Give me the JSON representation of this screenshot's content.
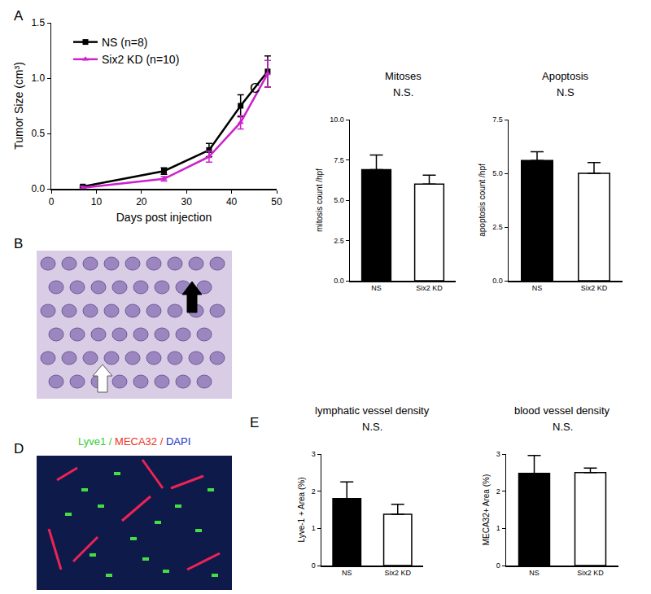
{
  "chart_data": [
    {
      "panel": "A",
      "type": "line",
      "x_label": "Days post injection",
      "y_label": "Tumor Size (cm³)",
      "xlim": [
        0,
        50
      ],
      "xticks": [
        0,
        10,
        20,
        30,
        40,
        50
      ],
      "ylim": [
        0,
        1.5
      ],
      "yticks": [
        {
          "value": 0,
          "label": "0.0"
        },
        {
          "value": 0.5,
          "label": "0.5"
        },
        {
          "value": 1,
          "label": "1.0"
        },
        {
          "value": 1.5,
          "label": "1.5"
        }
      ],
      "legend": "upper left",
      "x": [
        7,
        25,
        35,
        42,
        48
      ],
      "series": [
        {
          "name": "NS (n=8)",
          "color": "#000000",
          "marker": "square",
          "values": [
            0.02,
            0.16,
            0.35,
            0.75,
            1.06
          ],
          "errors": [
            0.01,
            0.03,
            0.06,
            0.1,
            0.14
          ]
        },
        {
          "name": "Six2 KD (n=10)",
          "color": "#cc22cc",
          "marker": "triangle-up",
          "values": [
            0.01,
            0.09,
            0.29,
            0.6,
            1.04
          ],
          "errors": [
            0.01,
            0.02,
            0.05,
            0.06,
            0.12
          ]
        }
      ]
    },
    {
      "panel": "B",
      "type": "image"
    },
    {
      "panel": "C",
      "type": "bar",
      "title": "Mitoses",
      "subtitle": "N.S.",
      "y_label": "mitosis count /hpf",
      "categories": [
        "NS",
        "Six2 KD"
      ],
      "values": [
        6.9,
        6.0
      ],
      "errors": [
        0.9,
        0.55
      ],
      "colors": [
        "#000000",
        "#ffffff"
      ],
      "ylim": [
        0,
        10
      ],
      "yticks": [
        {
          "value": 0,
          "label": "0.0"
        },
        2.5,
        {
          "value": 5,
          "label": "5.0"
        },
        7.5,
        {
          "value": 10,
          "label": "10.0"
        }
      ]
    },
    {
      "type": "bar",
      "title": "Apoptosis",
      "subtitle": "N.S",
      "y_label": "apoptosis count /hpf",
      "categories": [
        "NS",
        "Six2 KD"
      ],
      "values": [
        5.6,
        5.0
      ],
      "errors": [
        0.4,
        0.5
      ],
      "colors": [
        "#000000",
        "#ffffff"
      ],
      "ylim": [
        0,
        7.5
      ],
      "yticks": [
        {
          "value": 0,
          "label": "0.0"
        },
        2.5,
        {
          "value": 5,
          "label": "5.0"
        },
        7.5
      ]
    },
    {
      "panel": "D",
      "type": "image",
      "title_parts": [
        {
          "text": "Lyve1 / ",
          "color": "#33cc33"
        },
        {
          "text": "MECA32 / ",
          "color": "#ee3322"
        },
        {
          "text": "DAPI",
          "color": "#2233cc"
        }
      ]
    },
    {
      "panel": "E",
      "type": "bar",
      "title": "lymphatic vessel density",
      "subtitle": "N.S.",
      "y_label": "Lyve-1 + Area (%)",
      "categories": [
        "NS",
        "Six2 KD"
      ],
      "values": [
        1.8,
        1.38
      ],
      "errors": [
        0.45,
        0.27
      ],
      "colors": [
        "#000000",
        "#ffffff"
      ],
      "ylim": [
        0,
        3
      ],
      "yticks": [
        0,
        1,
        2,
        3
      ]
    },
    {
      "type": "bar",
      "title": "blood vessel density",
      "subtitle": "N.S.",
      "y_label": "MECA32+ Area (%)",
      "categories": [
        "NS",
        "Six2 KD"
      ],
      "values": [
        2.48,
        2.5
      ],
      "errors": [
        0.48,
        0.12
      ],
      "colors": [
        "#000000",
        "#ffffff"
      ],
      "ylim": [
        0,
        3
      ],
      "yticks": [
        0,
        1,
        2,
        3
      ]
    }
  ]
}
